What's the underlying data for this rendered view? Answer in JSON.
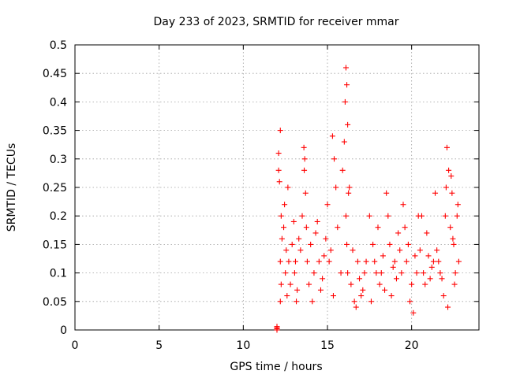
{
  "chart_data": {
    "type": "scatter",
    "title": "Day 233 of 2023, SRMTID for receiver mmar",
    "xlabel": "GPS time / hours",
    "ylabel": "SRMTID / TECUs",
    "xlim": [
      0,
      24
    ],
    "ylim": [
      0,
      0.5
    ],
    "xticks": [
      "0",
      "5",
      "10",
      "15",
      "20"
    ],
    "yticks": [
      "0",
      "0.05",
      "0.1",
      "0.15",
      "0.2",
      "0.25",
      "0.3",
      "0.35",
      "0.4",
      "0.45",
      "0.5"
    ],
    "grid": true,
    "marker": "plus",
    "color": "#ff0000",
    "series": [
      {
        "x": [
          12.0,
          12.0,
          12.0,
          12.0,
          12.1,
          12.15,
          12.2,
          12.25,
          12.3,
          12.2,
          12.25,
          12.1,
          12.2,
          12.4,
          12.5,
          12.6,
          12.45,
          12.55,
          12.7,
          12.8,
          12.9,
          12.65,
          13.0,
          13.1,
          13.2,
          13.3,
          13.05,
          13.15,
          13.4,
          13.5,
          13.6,
          13.65,
          13.7,
          13.75,
          13.8,
          13.9,
          13.62,
          14.0,
          14.2,
          14.4,
          14.6,
          14.8,
          14.1,
          14.3,
          14.5,
          14.7,
          14.9,
          15.0,
          15.2,
          15.3,
          15.4,
          15.5,
          15.6,
          15.8,
          15.35,
          15.1,
          15.9,
          16.0,
          16.05,
          16.1,
          16.15,
          16.2,
          16.3,
          16.25,
          16.1,
          16.15,
          16.2,
          16.4,
          16.6,
          16.8,
          17.0,
          17.2,
          16.5,
          16.7,
          16.9,
          17.1,
          17.3,
          17.5,
          17.7,
          17.9,
          18.1,
          18.3,
          17.6,
          17.8,
          18.0,
          18.2,
          18.4,
          18.5,
          18.7,
          18.9,
          19.1,
          19.3,
          18.6,
          18.8,
          19.0,
          19.2,
          19.4,
          19.5,
          19.7,
          19.9,
          20.1,
          20.3,
          19.6,
          19.8,
          20.0,
          20.2,
          20.4,
          20.5,
          20.7,
          20.9,
          21.1,
          21.3,
          20.6,
          20.8,
          21.0,
          21.2,
          21.4,
          21.5,
          21.7,
          21.9,
          22.0,
          22.1,
          22.2,
          21.6,
          21.8,
          22.05,
          22.15,
          22.3,
          22.4,
          22.5,
          22.6,
          22.7,
          22.8,
          22.35,
          22.45,
          22.55,
          22.75
        ],
        "y": [
          0.0,
          0.002,
          0.004,
          0.006,
          0.31,
          0.26,
          0.35,
          0.2,
          0.16,
          0.12,
          0.08,
          0.28,
          0.05,
          0.18,
          0.1,
          0.06,
          0.22,
          0.14,
          0.12,
          0.08,
          0.15,
          0.25,
          0.19,
          0.12,
          0.07,
          0.16,
          0.1,
          0.05,
          0.14,
          0.2,
          0.32,
          0.3,
          0.24,
          0.18,
          0.12,
          0.08,
          0.28,
          0.15,
          0.1,
          0.19,
          0.07,
          0.13,
          0.05,
          0.17,
          0.12,
          0.09,
          0.16,
          0.22,
          0.14,
          0.34,
          0.3,
          0.25,
          0.18,
          0.1,
          0.06,
          0.12,
          0.28,
          0.33,
          0.4,
          0.46,
          0.43,
          0.36,
          0.25,
          0.24,
          0.2,
          0.15,
          0.1,
          0.08,
          0.05,
          0.12,
          0.06,
          0.1,
          0.14,
          0.04,
          0.09,
          0.07,
          0.12,
          0.2,
          0.15,
          0.1,
          0.08,
          0.13,
          0.05,
          0.12,
          0.18,
          0.1,
          0.07,
          0.24,
          0.15,
          0.11,
          0.09,
          0.14,
          0.2,
          0.06,
          0.12,
          0.17,
          0.1,
          0.22,
          0.12,
          0.05,
          0.03,
          0.1,
          0.18,
          0.15,
          0.08,
          0.13,
          0.2,
          0.14,
          0.1,
          0.17,
          0.09,
          0.12,
          0.2,
          0.08,
          0.13,
          0.11,
          0.24,
          0.14,
          0.1,
          0.06,
          0.2,
          0.32,
          0.28,
          0.12,
          0.09,
          0.25,
          0.04,
          0.18,
          0.24,
          0.15,
          0.1,
          0.2,
          0.12,
          0.27,
          0.16,
          0.08,
          0.22
        ]
      }
    ]
  }
}
